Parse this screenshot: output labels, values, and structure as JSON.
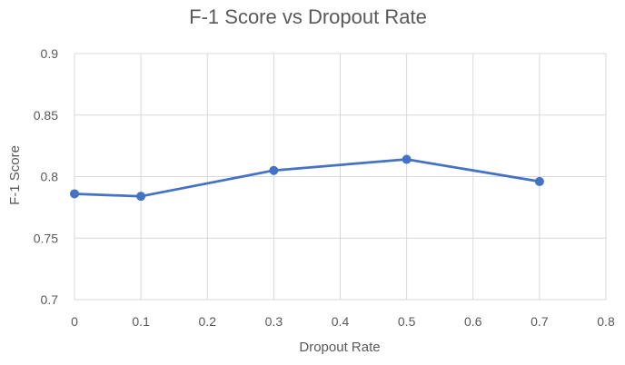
{
  "chart_data": {
    "type": "line",
    "title": "F-1 Score vs Dropout Rate",
    "xlabel": "Dropout Rate",
    "ylabel": "F-1 Score",
    "xlim": [
      0,
      0.8
    ],
    "ylim": [
      0.7,
      0.9
    ],
    "x_ticks": [
      "0",
      "0.1",
      "0.2",
      "0.3",
      "0.4",
      "0.5",
      "0.6",
      "0.7",
      "0.8"
    ],
    "y_ticks": [
      "0.7",
      "0.75",
      "0.8",
      "0.85",
      "0.9"
    ],
    "grid": true,
    "series": [
      {
        "x": [
          0,
          0.1,
          0.3,
          0.5,
          0.7
        ],
        "values": [
          0.786,
          0.784,
          0.805,
          0.814,
          0.796
        ],
        "color": "#4472c4"
      }
    ]
  }
}
